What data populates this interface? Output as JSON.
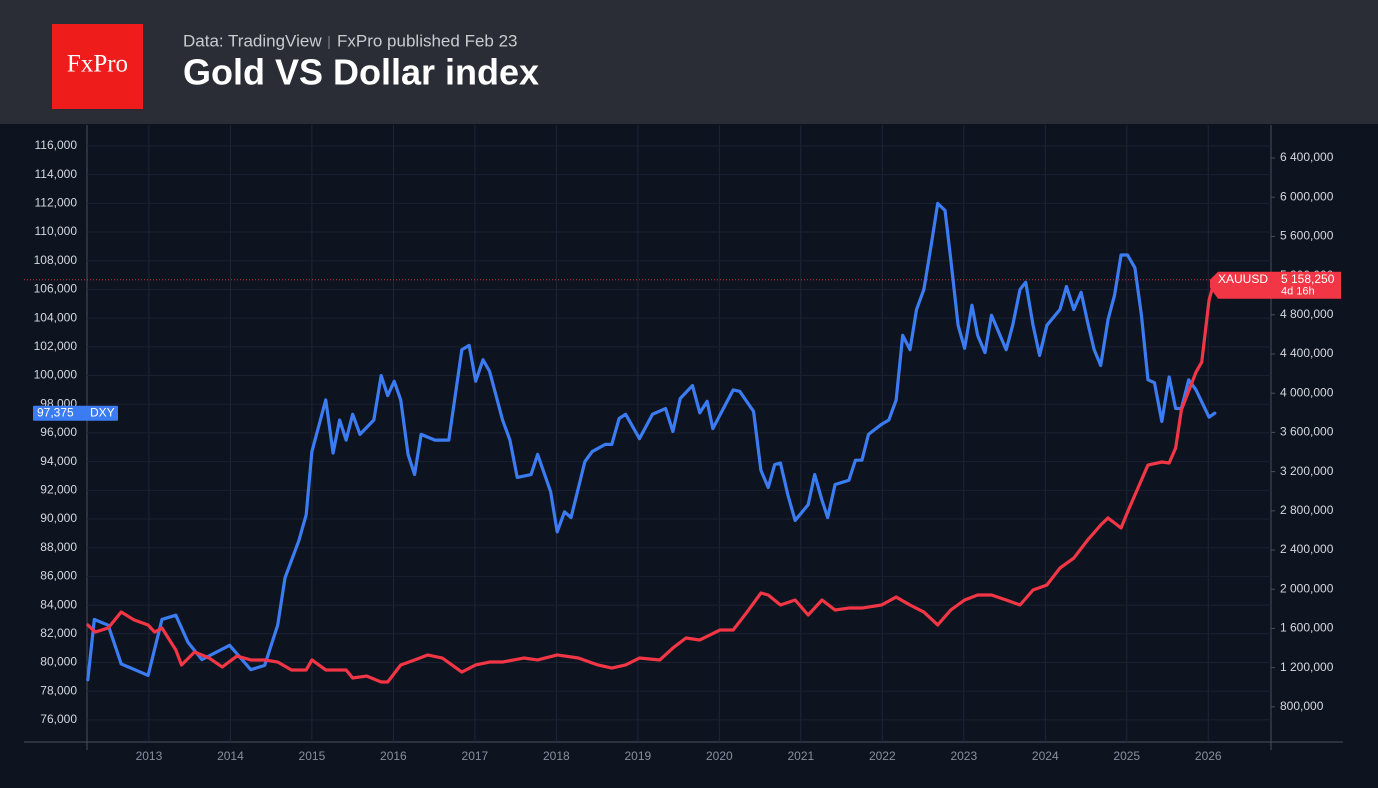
{
  "header": {
    "logo": "FxPro",
    "source": "Data: TradingView",
    "published": "FxPro published Feb 23",
    "title": "Gold VS Dollar index"
  },
  "chart_data": {
    "type": "line",
    "grid": true,
    "xlim": [
      2012.24,
      2026.77
    ],
    "xticks": [
      2013,
      2014,
      2015,
      2016,
      2017,
      2018,
      2019,
      2020,
      2021,
      2022,
      2023,
      2024,
      2025,
      2026
    ],
    "ylim": [
      74460,
      117460
    ],
    "yticks": [
      {
        "value": 116000,
        "label": "116,000"
      },
      {
        "value": 114000,
        "label": "114,000"
      },
      {
        "value": 112000,
        "label": "112,000"
      },
      {
        "value": 110000,
        "label": "110,000"
      },
      {
        "value": 108000,
        "label": "108,000"
      },
      {
        "value": 106000,
        "label": "106,000"
      },
      {
        "value": 104000,
        "label": "104,000"
      },
      {
        "value": 102000,
        "label": "102,000"
      },
      {
        "value": 100000,
        "label": "100,000"
      },
      {
        "value": 98000,
        "label": "98,000"
      },
      {
        "value": 96000,
        "label": "96,000"
      },
      {
        "value": 94000,
        "label": "94,000"
      },
      {
        "value": 92000,
        "label": "92,000"
      },
      {
        "value": 90000,
        "label": "90,000"
      },
      {
        "value": 88000,
        "label": "88,000"
      },
      {
        "value": 86000,
        "label": "86,000"
      },
      {
        "value": 84000,
        "label": "84,000"
      },
      {
        "value": 82000,
        "label": "82,000"
      },
      {
        "value": 80000,
        "label": "80,000"
      },
      {
        "value": 78000,
        "label": "78,000"
      },
      {
        "value": 76000,
        "label": "76,000"
      }
    ],
    "y2lim": [
      441000,
      6736700
    ],
    "y2ticks": [
      {
        "value": 6400000,
        "label": "6 400,000"
      },
      {
        "value": 6000000,
        "label": "6 000,000"
      },
      {
        "value": 5600000,
        "label": "5 600,000"
      },
      {
        "value": 5200000,
        "label": "5 200,000"
      },
      {
        "value": 4800000,
        "label": "4 800,000"
      },
      {
        "value": 4400000,
        "label": "4 400,000"
      },
      {
        "value": 4000000,
        "label": "4 000,000"
      },
      {
        "value": 3600000,
        "label": "3 600,000"
      },
      {
        "value": 3200000,
        "label": "3 200,000"
      },
      {
        "value": 2800000,
        "label": "2 800,000"
      },
      {
        "value": 2400000,
        "label": "2 400,000"
      },
      {
        "value": 2000000,
        "label": "2 000,000"
      },
      {
        "value": 1600000,
        "label": "1 600,000"
      },
      {
        "value": 1200000,
        "label": "1 200,000"
      },
      {
        "value": 800000,
        "label": "800,000"
      }
    ],
    "series": [
      {
        "name": "DXY",
        "color": "#3b7cf2",
        "last_label": "97,375",
        "x": [
          2012.25,
          2012.33,
          2012.5,
          2012.66,
          2012.99,
          2013.16,
          2013.33,
          2013.48,
          2013.65,
          2013.99,
          2014.25,
          2014.42,
          2014.58,
          2014.67,
          2014.84,
          2014.93,
          2015,
          2015.17,
          2015.26,
          2015.34,
          2015.42,
          2015.5,
          2015.59,
          2015.76,
          2015.85,
          2015.93,
          2016.01,
          2016.09,
          2016.18,
          2016.26,
          2016.34,
          2016.51,
          2016.68,
          2016.84,
          2016.93,
          2017.01,
          2017.1,
          2017.18,
          2017.34,
          2017.43,
          2017.52,
          2017.69,
          2017.77,
          2017.93,
          2018.01,
          2018.1,
          2018.18,
          2018.35,
          2018.44,
          2018.6,
          2018.68,
          2018.77,
          2018.85,
          2019.02,
          2019.18,
          2019.34,
          2019.43,
          2019.52,
          2019.67,
          2019.76,
          2019.85,
          2019.92,
          2020.17,
          2020.25,
          2020.42,
          2020.51,
          2020.6,
          2020.68,
          2020.75,
          2020.84,
          2020.93,
          2021.09,
          2021.17,
          2021.26,
          2021.33,
          2021.42,
          2021.59,
          2021.67,
          2021.75,
          2021.83,
          2021.99,
          2022.08,
          2022.17,
          2022.25,
          2022.34,
          2022.42,
          2022.51,
          2022.6,
          2022.68,
          2022.77,
          2022.84,
          2022.93,
          2023.01,
          2023.1,
          2023.17,
          2023.26,
          2023.34,
          2023.52,
          2023.6,
          2023.69,
          2023.76,
          2023.85,
          2023.93,
          2024.02,
          2024.18,
          2024.26,
          2024.35,
          2024.44,
          2024.52,
          2024.6,
          2024.68,
          2024.77,
          2024.85,
          2024.93,
          2025.01,
          2025.1,
          2025.18,
          2025.26,
          2025.34,
          2025.43,
          2025.52,
          2025.6,
          2025.67,
          2025.76,
          2025.85,
          2026.01,
          2026.08
        ],
        "values": [
          78800,
          83000,
          82600,
          79900,
          79100,
          83000,
          83300,
          81400,
          80200,
          81200,
          79500,
          79800,
          82600,
          85900,
          88500,
          90300,
          94700,
          98300,
          94600,
          96900,
          95500,
          97300,
          95900,
          96900,
          100000,
          98600,
          99600,
          98300,
          94500,
          93100,
          95900,
          95500,
          95500,
          101800,
          102100,
          99600,
          101100,
          100300,
          96900,
          95500,
          92900,
          93100,
          94500,
          91900,
          89100,
          90500,
          90100,
          94000,
          94700,
          95200,
          95200,
          97000,
          97300,
          95600,
          97300,
          97700,
          96100,
          98400,
          99300,
          97400,
          98200,
          96300,
          99000,
          98900,
          97500,
          93400,
          92200,
          93800,
          93900,
          91700,
          89900,
          91000,
          93100,
          91300,
          90100,
          92400,
          92700,
          94100,
          94100,
          95900,
          96600,
          96900,
          98300,
          102800,
          101800,
          104600,
          106000,
          109100,
          112000,
          111500,
          108100,
          103500,
          101900,
          104900,
          102800,
          101600,
          104200,
          101800,
          103500,
          106000,
          106500,
          103500,
          101400,
          103500,
          104600,
          106200,
          104600,
          105800,
          103700,
          101800,
          100700,
          103900,
          105600,
          108400,
          108400,
          107500,
          104200,
          99700,
          99500,
          96800,
          99900,
          97700,
          97700,
          99700,
          99000,
          97100,
          97375
        ]
      },
      {
        "name": "XAUUSD",
        "color": "#f23645",
        "axis": "y2",
        "last_label": "5 158,250",
        "countdown": "4d 16h",
        "x": [
          2012.25,
          2012.34,
          2012.5,
          2012.66,
          2012.82,
          2012.99,
          2013.07,
          2013.16,
          2013.33,
          2013.4,
          2013.56,
          2013.74,
          2013.9,
          2014.08,
          2014.25,
          2014.42,
          2014.58,
          2014.75,
          2014.93,
          2015,
          2015.17,
          2015.42,
          2015.5,
          2015.67,
          2015.85,
          2015.93,
          2016.09,
          2016.26,
          2016.42,
          2016.6,
          2016.84,
          2017.01,
          2017.18,
          2017.34,
          2017.6,
          2017.77,
          2018.01,
          2018.27,
          2018.51,
          2018.68,
          2018.85,
          2019.02,
          2019.27,
          2019.43,
          2019.59,
          2019.76,
          2020.01,
          2020.17,
          2020.34,
          2020.51,
          2020.6,
          2020.75,
          2020.93,
          2021.09,
          2021.26,
          2021.42,
          2021.59,
          2021.75,
          2021.99,
          2022.17,
          2022.34,
          2022.51,
          2022.68,
          2022.84,
          2023.01,
          2023.17,
          2023.34,
          2023.52,
          2023.69,
          2023.85,
          2024.02,
          2024.18,
          2024.35,
          2024.52,
          2024.68,
          2024.77,
          2024.93,
          2025.01,
          2025.18,
          2025.26,
          2025.43,
          2025.52,
          2025.6,
          2025.67,
          2025.85,
          2025.92,
          2026.01,
          2026.08
        ],
        "values": [
          1635000,
          1563000,
          1604000,
          1767000,
          1686000,
          1635000,
          1563000,
          1604000,
          1380000,
          1227000,
          1359000,
          1298000,
          1206000,
          1318000,
          1278000,
          1278000,
          1257000,
          1176000,
          1176000,
          1278000,
          1176000,
          1176000,
          1094000,
          1114000,
          1053000,
          1053000,
          1227000,
          1278000,
          1329000,
          1298000,
          1155000,
          1227000,
          1257000,
          1257000,
          1298000,
          1278000,
          1329000,
          1298000,
          1227000,
          1196000,
          1227000,
          1298000,
          1278000,
          1400000,
          1502000,
          1482000,
          1584000,
          1584000,
          1767000,
          1961000,
          1941000,
          1839000,
          1890000,
          1737000,
          1890000,
          1788000,
          1808000,
          1808000,
          1839000,
          1920000,
          1839000,
          1767000,
          1635000,
          1788000,
          1890000,
          1941000,
          1941000,
          1890000,
          1839000,
          1992000,
          2043000,
          2216000,
          2318000,
          2502000,
          2655000,
          2727000,
          2625000,
          2788000,
          3114000,
          3267000,
          3298000,
          3288000,
          3441000,
          3829000,
          4216000,
          4318000,
          4951000,
          5158250
        ]
      }
    ]
  }
}
